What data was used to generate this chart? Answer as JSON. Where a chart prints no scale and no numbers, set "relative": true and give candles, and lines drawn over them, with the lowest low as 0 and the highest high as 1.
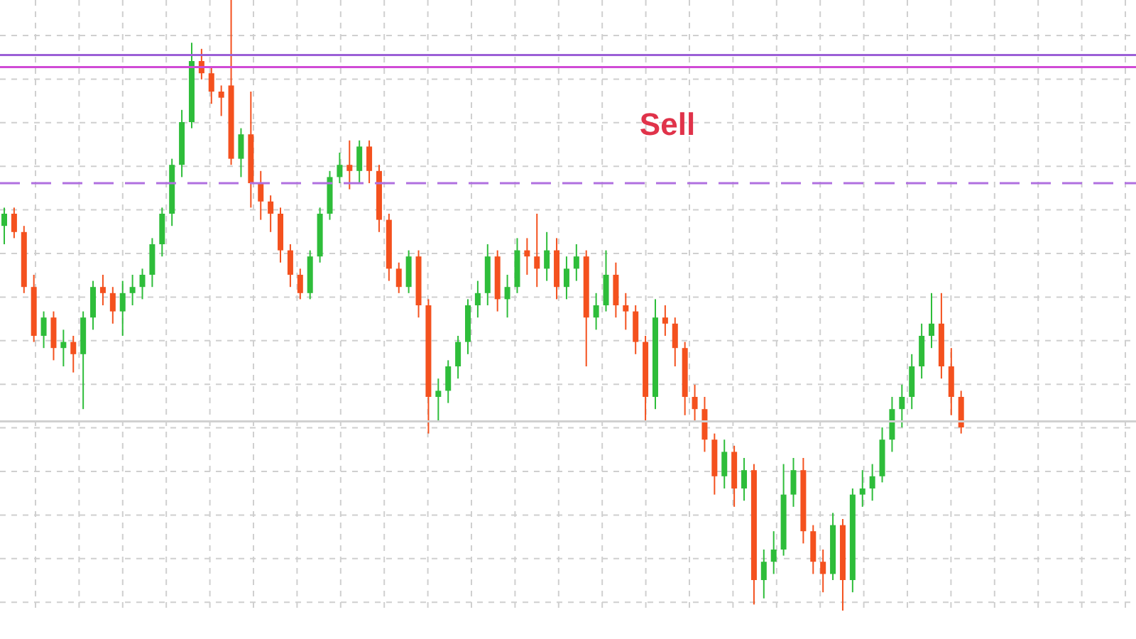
{
  "chart_data": {
    "type": "candlestick",
    "relative": true,
    "grid": true,
    "annotations": [
      "Sell"
    ],
    "categories": [
      null,
      null,
      null,
      null,
      null,
      null,
      null,
      null,
      null,
      null,
      null,
      null,
      null,
      null,
      null,
      null,
      null,
      null,
      null,
      null,
      null,
      null,
      null,
      null,
      null,
      null,
      null,
      null,
      null,
      null,
      null,
      null,
      null,
      null,
      null,
      null,
      null,
      null,
      null,
      null,
      null,
      null,
      null,
      null,
      null,
      null,
      null,
      null,
      null,
      null,
      null,
      null,
      null,
      null,
      null,
      null,
      null,
      null,
      null,
      null,
      null,
      null,
      null,
      null,
      null,
      null,
      null,
      null,
      null,
      null,
      null,
      null,
      null,
      null,
      null,
      null,
      null,
      null,
      null,
      null,
      null,
      null,
      null,
      null,
      null,
      null,
      null,
      null,
      null,
      null,
      null,
      null,
      null,
      null,
      null,
      null,
      null,
      null
    ],
    "ohlc": [
      [
        0.63,
        0.66,
        0.6,
        0.65
      ],
      [
        0.65,
        0.66,
        0.61,
        0.62
      ],
      [
        0.62,
        0.63,
        0.52,
        0.53
      ],
      [
        0.53,
        0.55,
        0.44,
        0.45
      ],
      [
        0.45,
        0.49,
        0.43,
        0.48
      ],
      [
        0.48,
        0.49,
        0.41,
        0.43
      ],
      [
        0.43,
        0.46,
        0.4,
        0.44
      ],
      [
        0.44,
        0.45,
        0.39,
        0.42
      ],
      [
        0.42,
        0.49,
        0.33,
        0.48
      ],
      [
        0.48,
        0.54,
        0.46,
        0.53
      ],
      [
        0.53,
        0.55,
        0.5,
        0.52
      ],
      [
        0.52,
        0.53,
        0.47,
        0.49
      ],
      [
        0.49,
        0.54,
        0.45,
        0.52
      ],
      [
        0.52,
        0.55,
        0.5,
        0.53
      ],
      [
        0.53,
        0.56,
        0.51,
        0.55
      ],
      [
        0.55,
        0.61,
        0.53,
        0.6
      ],
      [
        0.6,
        0.66,
        0.58,
        0.65
      ],
      [
        0.65,
        0.74,
        0.63,
        0.73
      ],
      [
        0.73,
        0.82,
        0.71,
        0.8
      ],
      [
        0.8,
        0.93,
        0.79,
        0.9
      ],
      [
        0.9,
        0.92,
        0.87,
        0.88
      ],
      [
        0.88,
        0.89,
        0.83,
        0.85
      ],
      [
        0.85,
        0.86,
        0.81,
        0.84
      ],
      [
        0.86,
        1.0,
        0.73,
        0.74
      ],
      [
        0.74,
        0.79,
        0.71,
        0.78
      ],
      [
        0.78,
        0.85,
        0.66,
        0.7
      ],
      [
        0.7,
        0.72,
        0.64,
        0.67
      ],
      [
        0.67,
        0.68,
        0.62,
        0.65
      ],
      [
        0.65,
        0.66,
        0.57,
        0.59
      ],
      [
        0.59,
        0.6,
        0.53,
        0.55
      ],
      [
        0.55,
        0.56,
        0.51,
        0.52
      ],
      [
        0.52,
        0.59,
        0.51,
        0.58
      ],
      [
        0.58,
        0.66,
        0.57,
        0.65
      ],
      [
        0.65,
        0.72,
        0.64,
        0.71
      ],
      [
        0.71,
        0.75,
        0.7,
        0.73
      ],
      [
        0.73,
        0.77,
        0.69,
        0.72
      ],
      [
        0.72,
        0.77,
        0.7,
        0.76
      ],
      [
        0.76,
        0.77,
        0.7,
        0.72
      ],
      [
        0.72,
        0.73,
        0.62,
        0.64
      ],
      [
        0.64,
        0.65,
        0.54,
        0.56
      ],
      [
        0.56,
        0.57,
        0.52,
        0.53
      ],
      [
        0.53,
        0.59,
        0.52,
        0.58
      ],
      [
        0.58,
        0.59,
        0.48,
        0.5
      ],
      [
        0.5,
        0.51,
        0.29,
        0.35
      ],
      [
        0.35,
        0.38,
        0.31,
        0.36
      ],
      [
        0.36,
        0.41,
        0.34,
        0.4
      ],
      [
        0.4,
        0.45,
        0.38,
        0.44
      ],
      [
        0.44,
        0.51,
        0.42,
        0.5
      ],
      [
        0.5,
        0.54,
        0.48,
        0.52
      ],
      [
        0.52,
        0.6,
        0.5,
        0.58
      ],
      [
        0.58,
        0.59,
        0.49,
        0.51
      ],
      [
        0.51,
        0.55,
        0.48,
        0.53
      ],
      [
        0.53,
        0.61,
        0.52,
        0.59
      ],
      [
        0.59,
        0.61,
        0.55,
        0.58
      ],
      [
        0.58,
        0.65,
        0.53,
        0.56
      ],
      [
        0.56,
        0.62,
        0.54,
        0.59
      ],
      [
        0.59,
        0.61,
        0.51,
        0.53
      ],
      [
        0.53,
        0.58,
        0.51,
        0.56
      ],
      [
        0.56,
        0.6,
        0.54,
        0.58
      ],
      [
        0.58,
        0.59,
        0.4,
        0.48
      ],
      [
        0.48,
        0.52,
        0.46,
        0.5
      ],
      [
        0.5,
        0.59,
        0.49,
        0.55
      ],
      [
        0.55,
        0.57,
        0.48,
        0.5
      ],
      [
        0.5,
        0.52,
        0.46,
        0.49
      ],
      [
        0.49,
        0.5,
        0.42,
        0.44
      ],
      [
        0.44,
        0.45,
        0.31,
        0.35
      ],
      [
        0.35,
        0.51,
        0.33,
        0.48
      ],
      [
        0.48,
        0.5,
        0.45,
        0.47
      ],
      [
        0.47,
        0.48,
        0.4,
        0.43
      ],
      [
        0.43,
        0.44,
        0.32,
        0.35
      ],
      [
        0.35,
        0.37,
        0.31,
        0.33
      ],
      [
        0.33,
        0.35,
        0.26,
        0.28
      ],
      [
        0.28,
        0.29,
        0.19,
        0.22
      ],
      [
        0.22,
        0.28,
        0.2,
        0.26
      ],
      [
        0.26,
        0.27,
        0.17,
        0.2
      ],
      [
        0.2,
        0.25,
        0.18,
        0.23
      ],
      [
        0.23,
        0.24,
        0.01,
        0.05
      ],
      [
        0.05,
        0.1,
        0.02,
        0.08
      ],
      [
        0.08,
        0.13,
        0.06,
        0.1
      ],
      [
        0.1,
        0.24,
        0.09,
        0.19
      ],
      [
        0.19,
        0.25,
        0.17,
        0.23
      ],
      [
        0.23,
        0.25,
        0.11,
        0.13
      ],
      [
        0.13,
        0.14,
        0.06,
        0.08
      ],
      [
        0.08,
        0.1,
        0.03,
        0.06
      ],
      [
        0.06,
        0.16,
        0.05,
        0.14
      ],
      [
        0.14,
        0.15,
        0.0,
        0.05
      ],
      [
        0.05,
        0.2,
        0.03,
        0.19
      ],
      [
        0.19,
        0.23,
        0.17,
        0.2
      ],
      [
        0.2,
        0.24,
        0.18,
        0.22
      ],
      [
        0.22,
        0.3,
        0.21,
        0.28
      ],
      [
        0.28,
        0.35,
        0.26,
        0.33
      ],
      [
        0.33,
        0.37,
        0.3,
        0.35
      ],
      [
        0.35,
        0.42,
        0.33,
        0.4
      ],
      [
        0.4,
        0.47,
        0.38,
        0.45
      ],
      [
        0.45,
        0.52,
        0.43,
        0.47
      ],
      [
        0.47,
        0.52,
        0.38,
        0.4
      ],
      [
        0.4,
        0.43,
        0.32,
        0.35
      ],
      [
        0.35,
        0.36,
        0.29,
        0.3
      ]
    ],
    "colors": [
      "#2ebd3a",
      "#f4511e",
      "#f4511e",
      "#f4511e",
      "#2ebd3a",
      "#f4511e",
      "#2ebd3a",
      "#f4511e",
      "#2ebd3a",
      "#2ebd3a",
      "#f4511e",
      "#f4511e",
      "#2ebd3a",
      "#2ebd3a",
      "#2ebd3a",
      "#2ebd3a",
      "#2ebd3a",
      "#2ebd3a",
      "#2ebd3a",
      "#2ebd3a",
      "#f4511e",
      "#f4511e",
      "#f4511e",
      "#f4511e",
      "#2ebd3a",
      "#f4511e",
      "#f4511e",
      "#f4511e",
      "#f4511e",
      "#f4511e",
      "#f4511e",
      "#2ebd3a",
      "#2ebd3a",
      "#2ebd3a",
      "#2ebd3a",
      "#f4511e",
      "#2ebd3a",
      "#f4511e",
      "#f4511e",
      "#f4511e",
      "#f4511e",
      "#2ebd3a",
      "#f4511e",
      "#f4511e",
      "#2ebd3a",
      "#2ebd3a",
      "#2ebd3a",
      "#2ebd3a",
      "#2ebd3a",
      "#2ebd3a",
      "#f4511e",
      "#2ebd3a",
      "#2ebd3a",
      "#f4511e",
      "#f4511e",
      "#2ebd3a",
      "#f4511e",
      "#2ebd3a",
      "#2ebd3a",
      "#f4511e",
      "#2ebd3a",
      "#2ebd3a",
      "#f4511e",
      "#f4511e",
      "#f4511e",
      "#f4511e",
      "#2ebd3a",
      "#f4511e",
      "#f4511e",
      "#f4511e",
      "#f4511e",
      "#f4511e",
      "#f4511e",
      "#2ebd3a",
      "#f4511e",
      "#2ebd3a",
      "#f4511e",
      "#2ebd3a",
      "#2ebd3a",
      "#2ebd3a",
      "#2ebd3a",
      "#f4511e",
      "#f4511e",
      "#f4511e",
      "#2ebd3a",
      "#f4511e",
      "#2ebd3a",
      "#2ebd3a",
      "#2ebd3a",
      "#2ebd3a",
      "#2ebd3a",
      "#2ebd3a",
      "#2ebd3a",
      "#2ebd3a",
      "#2ebd3a",
      "#f4511e",
      "#f4511e",
      "#f4511e"
    ],
    "ref_lines": [
      {
        "axis": "y",
        "value": 0.91,
        "color": "#9b5fd6",
        "line_style": "solid"
      },
      {
        "axis": "y",
        "value": 0.89,
        "color": "#d04ad6",
        "line_style": "solid"
      },
      {
        "axis": "y",
        "value": 0.7,
        "color": "#b070e0",
        "line_style": "dashed"
      },
      {
        "axis": "y",
        "value": 0.31,
        "color": "#d0d0d0",
        "line_style": "solid"
      }
    ]
  }
}
